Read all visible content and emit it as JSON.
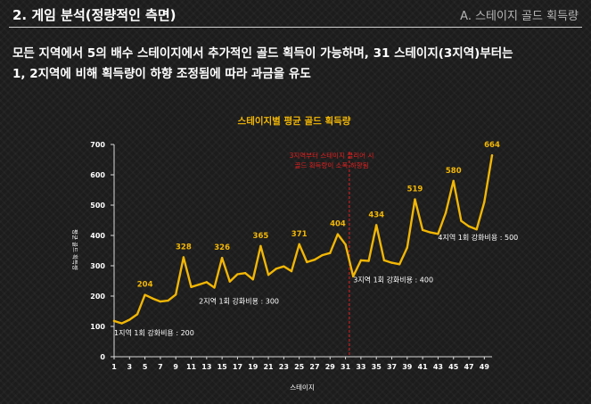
{
  "header": {
    "title": "2. 게임 분석(정량적인 측면)",
    "subtitle": "A. 스테이지 골드 획득량"
  },
  "description": {
    "line1": "모든 지역에서 5의 배수 스테이지에서 추가적인 골드 획득이 가능하며, 31 스테이지(3지역)부터는",
    "line2": "1, 2지역에 비해 획득량이 하향 조정됨에 따라 과금을 유도"
  },
  "colors": {
    "line": "#f2b705",
    "label": "#f2b705",
    "divider": "#e02020",
    "text": "#ffffff"
  },
  "chart_data": {
    "type": "line",
    "title": "스테이지별 평균 골드 획득량",
    "xlabel": "스테이지",
    "ylabel": "평균 골드 획득량",
    "xlim": [
      1,
      50
    ],
    "ylim": [
      0,
      700
    ],
    "xticks": [
      1,
      3,
      5,
      7,
      9,
      11,
      13,
      15,
      17,
      19,
      21,
      23,
      25,
      27,
      29,
      31,
      33,
      35,
      37,
      39,
      41,
      43,
      45,
      47,
      49
    ],
    "yticks": [
      0,
      100,
      200,
      300,
      400,
      500,
      600,
      700
    ],
    "x": [
      1,
      2,
      3,
      4,
      5,
      6,
      7,
      8,
      9,
      10,
      11,
      12,
      13,
      14,
      15,
      16,
      17,
      18,
      19,
      20,
      21,
      22,
      23,
      24,
      25,
      26,
      27,
      28,
      29,
      30,
      31,
      32,
      33,
      34,
      35,
      36,
      37,
      38,
      39,
      40,
      41,
      42,
      43,
      44,
      45,
      46,
      47,
      48,
      49,
      50
    ],
    "values": [
      118,
      110,
      122,
      140,
      204,
      192,
      182,
      185,
      205,
      328,
      230,
      238,
      246,
      228,
      326,
      248,
      272,
      276,
      255,
      365,
      270,
      290,
      298,
      282,
      371,
      312,
      320,
      335,
      342,
      404,
      370,
      265,
      318,
      316,
      434,
      318,
      310,
      305,
      360,
      519,
      418,
      410,
      405,
      475,
      580,
      448,
      430,
      420,
      510,
      664
    ],
    "point_labels": [
      {
        "x": 5,
        "value": "204"
      },
      {
        "x": 10,
        "value": "328"
      },
      {
        "x": 15,
        "value": "326"
      },
      {
        "x": 20,
        "value": "365"
      },
      {
        "x": 25,
        "value": "371"
      },
      {
        "x": 30,
        "value": "404"
      },
      {
        "x": 35,
        "value": "434"
      },
      {
        "x": 40,
        "value": "519"
      },
      {
        "x": 45,
        "value": "580"
      },
      {
        "x": 50,
        "value": "664"
      }
    ],
    "divider": {
      "x": 31.5,
      "note_line1": "3지역부터 스테이지 클리어 시",
      "note_line2": "골드 획득량이 소폭 하향됨"
    },
    "annotations": [
      {
        "text": "1지역 1회 강화비용 : 200",
        "x": 1,
        "y": 70,
        "anchor": "start"
      },
      {
        "text": "2지역 1회 강화비용 : 300",
        "x": 12,
        "y": 175,
        "anchor": "start"
      },
      {
        "text": "3지역 1회 강화비용 : 400",
        "x": 32,
        "y": 245,
        "anchor": "start"
      },
      {
        "text": "4지역 1회 강화비용 : 500",
        "x": 43,
        "y": 385,
        "anchor": "start"
      }
    ],
    "grid": false,
    "legend": "none"
  }
}
